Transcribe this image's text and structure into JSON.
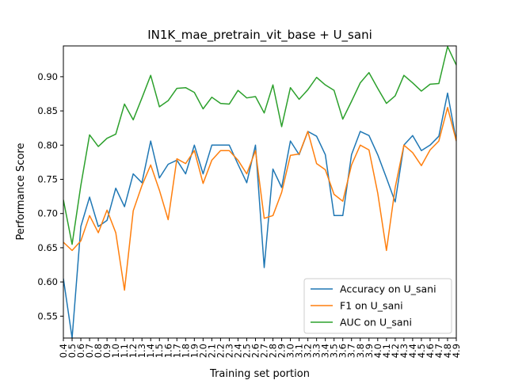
{
  "chart_data": {
    "type": "line",
    "title": "IN1K_mae_pretrain_vit_base + U_sani",
    "xlabel": "Training set portion",
    "ylabel": "Performance Score",
    "x": [
      0.4,
      0.5,
      0.6,
      0.7,
      0.8,
      0.9,
      1.0,
      1.1,
      1.2,
      1.3,
      1.4,
      1.5,
      1.6,
      1.7,
      1.8,
      1.9,
      2.0,
      2.1,
      2.2,
      2.3,
      2.4,
      2.5,
      2.6,
      2.7,
      2.8,
      2.9,
      3.0,
      3.1,
      3.2,
      3.3,
      3.4,
      3.5,
      3.6,
      3.7,
      3.8,
      3.9,
      4.0,
      4.1,
      4.2,
      4.3,
      4.4,
      4.5,
      4.6,
      4.7,
      4.8,
      4.9
    ],
    "xlim": [
      0.4,
      4.9
    ],
    "ylim": [
      0.518,
      0.945
    ],
    "yticks": [
      0.55,
      0.6,
      0.65,
      0.7,
      0.75,
      0.8,
      0.85,
      0.9
    ],
    "ytick_labels": [
      "0.55",
      "0.60",
      "0.65",
      "0.70",
      "0.75",
      "0.80",
      "0.85",
      "0.90"
    ],
    "xtick_labels": [
      "0.4",
      "0.5",
      "0.6",
      "0.7",
      "0.8",
      "0.9",
      "1.0",
      "1.1",
      "1.2",
      "1.3",
      "1.4",
      "1.5",
      "1.6",
      "1.7",
      "1.8",
      "1.9",
      "2.0",
      "2.1",
      "2.2",
      "2.3",
      "2.4",
      "2.5",
      "2.6",
      "2.7",
      "2.8",
      "2.9",
      "3.0",
      "3.1",
      "3.2",
      "3.3",
      "3.4",
      "3.5",
      "3.6",
      "3.7",
      "3.8",
      "3.9",
      "4.0",
      "4.1",
      "4.2",
      "4.3",
      "4.4",
      "4.5",
      "4.6",
      "4.7",
      "4.8",
      "4.9"
    ],
    "grid": false,
    "legend_position": "lower-right",
    "series": [
      {
        "name": "Accuracy on U_sani",
        "color": "#1f77b4",
        "values": [
          0.605,
          0.518,
          0.681,
          0.724,
          0.681,
          0.69,
          0.737,
          0.71,
          0.758,
          0.745,
          0.806,
          0.752,
          0.772,
          0.778,
          0.758,
          0.8,
          0.758,
          0.8,
          0.8,
          0.8,
          0.772,
          0.745,
          0.8,
          0.621,
          0.765,
          0.738,
          0.806,
          0.786,
          0.82,
          0.813,
          0.786,
          0.697,
          0.697,
          0.786,
          0.82,
          0.814,
          0.786,
          0.752,
          0.717,
          0.8,
          0.814,
          0.792,
          0.8,
          0.813,
          0.876,
          0.806
        ]
      },
      {
        "name": "F1 on U_sani",
        "color": "#ff7f0e",
        "values": [
          0.658,
          0.646,
          0.66,
          0.697,
          0.672,
          0.705,
          0.672,
          0.588,
          0.704,
          0.741,
          0.771,
          0.734,
          0.691,
          0.78,
          0.773,
          0.792,
          0.744,
          0.778,
          0.792,
          0.792,
          0.778,
          0.758,
          0.792,
          0.693,
          0.697,
          0.731,
          0.785,
          0.787,
          0.82,
          0.773,
          0.764,
          0.728,
          0.718,
          0.771,
          0.8,
          0.793,
          0.73,
          0.646,
          0.738,
          0.8,
          0.789,
          0.77,
          0.793,
          0.806,
          0.855,
          0.806
        ]
      },
      {
        "name": "AUC on U_sani",
        "color": "#2ca02c",
        "values": [
          0.72,
          0.655,
          0.741,
          0.815,
          0.798,
          0.81,
          0.816,
          0.86,
          0.837,
          0.869,
          0.902,
          0.856,
          0.865,
          0.883,
          0.884,
          0.877,
          0.853,
          0.87,
          0.861,
          0.86,
          0.88,
          0.869,
          0.871,
          0.847,
          0.888,
          0.827,
          0.884,
          0.867,
          0.881,
          0.899,
          0.888,
          0.88,
          0.838,
          0.864,
          0.891,
          0.906,
          0.883,
          0.861,
          0.872,
          0.902,
          0.891,
          0.879,
          0.889,
          0.89,
          0.944,
          0.917
        ]
      }
    ]
  }
}
